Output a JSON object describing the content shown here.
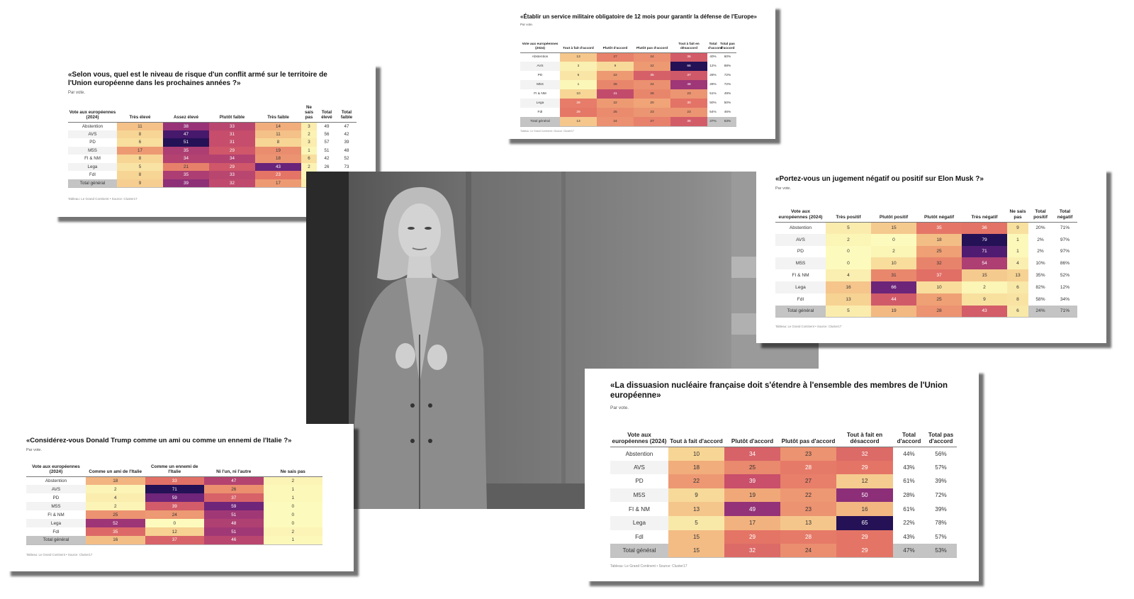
{
  "colors": {
    "heat_low": "#fcfbbd",
    "heat_mid": "#e47466",
    "heat_high": "#241156",
    "total_row": "#c4c4c4"
  },
  "chart_data": [
    {
      "type": "heatmap",
      "title": "«Selon vous, quel est le niveau de risque d'un conflit armé sur le territoire de l'Union européenne dans les prochaines années ?»",
      "subtitle": "Par vote.",
      "source": "Tableau: Le Grand Continent • Source: Cluster17",
      "row_header": "Vote aux européennes (2024)",
      "heat_headers": [
        "Très élevé",
        "Assez élevé",
        "Plutôt faible",
        "Très faible",
        "Ne sais pas"
      ],
      "total_headers": [
        "Total élevé",
        "Total faible"
      ],
      "rows": [
        {
          "label": "Abstention",
          "values": [
            11,
            38,
            33,
            14,
            3
          ],
          "totals": [
            "49",
            "47"
          ]
        },
        {
          "label": "AVS",
          "values": [
            8,
            47,
            31,
            11,
            2
          ],
          "totals": [
            "56",
            "42"
          ]
        },
        {
          "label": "PD",
          "values": [
            6,
            51,
            31,
            8,
            3
          ],
          "totals": [
            "57",
            "39"
          ]
        },
        {
          "label": "M5S",
          "values": [
            17,
            35,
            29,
            19,
            1
          ],
          "totals": [
            "51",
            "48"
          ]
        },
        {
          "label": "FI & NM",
          "values": [
            8,
            34,
            34,
            18,
            6
          ],
          "totals": [
            "42",
            "52"
          ]
        },
        {
          "label": "Lega",
          "values": [
            5,
            21,
            29,
            43,
            2
          ],
          "totals": [
            "26",
            "73"
          ]
        },
        {
          "label": "FdI",
          "values": [
            8,
            35,
            33,
            23,
            1
          ],
          "totals": [
            null,
            null
          ]
        },
        {
          "label": "Total général",
          "values": [
            9,
            39,
            32,
            17,
            3
          ],
          "totals": [
            null,
            null
          ]
        }
      ]
    },
    {
      "type": "heatmap",
      "title": "«Établir un service militaire obligatoire de 12 mois pour garantir la défense de l'Europe»",
      "subtitle": "Par vote.",
      "source": "Tableau: Le Grand Continent • Source: Cluster17",
      "row_header": "Vote aux européennes (2024)",
      "heat_headers": [
        "Tout à fait d'accord",
        "Plutôt d'accord",
        "Plutôt pas d'accord",
        "Tout à fait en désaccord"
      ],
      "total_headers": [
        "Total d'accord",
        "Total pas d'accord"
      ],
      "rows": [
        {
          "label": "Abstention",
          "values": [
            13,
            27,
            24,
            36
          ],
          "totals": [
            "40%",
            "60%"
          ]
        },
        {
          "label": "AVS",
          "values": [
            3,
            9,
            22,
            66
          ],
          "totals": [
            "12%",
            "88%"
          ]
        },
        {
          "label": "PD",
          "values": [
            6,
            22,
            35,
            37
          ],
          "totals": [
            "28%",
            "72%"
          ]
        },
        {
          "label": "M5S",
          "values": [
            1,
            26,
            24,
            48
          ],
          "totals": [
            "28%",
            "72%"
          ]
        },
        {
          "label": "FI & NM",
          "values": [
            10,
            41,
            26,
            23
          ],
          "totals": [
            "51%",
            "49%"
          ]
        },
        {
          "label": "Lega",
          "values": [
            28,
            22,
            20,
            30
          ],
          "totals": [
            "50%",
            "50%"
          ]
        },
        {
          "label": "FdI",
          "values": [
            29,
            25,
            23,
            23
          ],
          "totals": [
            "54%",
            "46%"
          ]
        },
        {
          "label": "Total général",
          "values": [
            13,
            24,
            27,
            36
          ],
          "totals": [
            "37%",
            "63%"
          ]
        }
      ]
    },
    {
      "type": "heatmap",
      "title": "«Portez-vous un jugement négatif ou positif sur Elon Musk ?»",
      "subtitle": "Par vote.",
      "source": "Tableau: Le Grand Continent • Source: Cluster17",
      "row_header": "Vote aux européennes (2024)",
      "heat_headers": [
        "Très positif",
        "Plutôt positif",
        "Plutôt négatif",
        "Très négatif",
        "Ne sais pas"
      ],
      "total_headers": [
        "Total positif",
        "Total négatif"
      ],
      "rows": [
        {
          "label": "Abstention",
          "values": [
            5,
            15,
            35,
            36,
            9
          ],
          "totals": [
            "20%",
            "71%"
          ]
        },
        {
          "label": "AVS",
          "values": [
            2,
            0,
            18,
            79,
            1
          ],
          "totals": [
            "2%",
            "97%"
          ]
        },
        {
          "label": "PD",
          "values": [
            0,
            2,
            25,
            71,
            1
          ],
          "totals": [
            "2%",
            "97%"
          ]
        },
        {
          "label": "M5S",
          "values": [
            0,
            10,
            32,
            54,
            4
          ],
          "totals": [
            "10%",
            "86%"
          ]
        },
        {
          "label": "FI & NM",
          "values": [
            4,
            31,
            37,
            15,
            13
          ],
          "totals": [
            "35%",
            "52%"
          ]
        },
        {
          "label": "Lega",
          "values": [
            16,
            66,
            10,
            2,
            6
          ],
          "totals": [
            "82%",
            "12%"
          ]
        },
        {
          "label": "FdI",
          "values": [
            13,
            44,
            25,
            9,
            8
          ],
          "totals": [
            "58%",
            "34%"
          ]
        },
        {
          "label": "Total général",
          "values": [
            5,
            19,
            28,
            43,
            6
          ],
          "totals": [
            "24%",
            "71%"
          ]
        }
      ]
    },
    {
      "type": "heatmap",
      "title": "«Considérez-vous Donald Trump comme un ami ou comme un ennemi de l'Italie ?»",
      "subtitle": "Par vote.",
      "source": "Tableau: Le Grand Continent • Source: Cluster17",
      "row_header": "Vote aux européennes (2024)",
      "heat_headers": [
        "Comme un ami de l'Italie",
        "Comme un ennemi de l'Italie",
        "Ni l'un, ni l'autre",
        "Ne sais pas"
      ],
      "total_headers": [],
      "rows": [
        {
          "label": "Abstention",
          "values": [
            18,
            33,
            47,
            2
          ],
          "totals": []
        },
        {
          "label": "AVS",
          "values": [
            2,
            71,
            26,
            1
          ],
          "totals": []
        },
        {
          "label": "PD",
          "values": [
            4,
            59,
            37,
            1
          ],
          "totals": []
        },
        {
          "label": "M5S",
          "values": [
            2,
            39,
            59,
            0
          ],
          "totals": []
        },
        {
          "label": "FI & NM",
          "values": [
            25,
            24,
            51,
            0
          ],
          "totals": []
        },
        {
          "label": "Lega",
          "values": [
            52,
            0,
            48,
            0
          ],
          "totals": []
        },
        {
          "label": "FdI",
          "values": [
            35,
            12,
            51,
            2
          ],
          "totals": []
        },
        {
          "label": "Total général",
          "values": [
            16,
            37,
            46,
            1
          ],
          "totals": []
        }
      ]
    },
    {
      "type": "heatmap",
      "title": "«La dissuasion nucléaire française doit s'étendre à l'ensemble des membres de l'Union européenne»",
      "subtitle": "Par vote.",
      "source": "Tableau: Le Grand Continent • Source: Cluster17",
      "row_header": "Vote aux européennes (2024)",
      "heat_headers": [
        "Tout à fait d'accord",
        "Plutôt d'accord",
        "Plutôt pas d'accord",
        "Tout à fait en désaccord"
      ],
      "total_headers": [
        "Total d'accord",
        "Total pas d'accord"
      ],
      "rows": [
        {
          "label": "Abstention",
          "values": [
            10,
            34,
            23,
            32
          ],
          "totals": [
            "44%",
            "56%"
          ]
        },
        {
          "label": "AVS",
          "values": [
            18,
            25,
            28,
            29
          ],
          "totals": [
            "43%",
            "57%"
          ]
        },
        {
          "label": "PD",
          "values": [
            22,
            39,
            27,
            12
          ],
          "totals": [
            "61%",
            "39%"
          ]
        },
        {
          "label": "M5S",
          "values": [
            9,
            19,
            22,
            50
          ],
          "totals": [
            "28%",
            "72%"
          ]
        },
        {
          "label": "FI & NM",
          "values": [
            13,
            49,
            23,
            16
          ],
          "totals": [
            "61%",
            "39%"
          ]
        },
        {
          "label": "Lega",
          "values": [
            5,
            17,
            13,
            65
          ],
          "totals": [
            "22%",
            "78%"
          ]
        },
        {
          "label": "FdI",
          "values": [
            15,
            29,
            28,
            29
          ],
          "totals": [
            "43%",
            "57%"
          ]
        },
        {
          "label": "Total général",
          "values": [
            15,
            32,
            24,
            29
          ],
          "totals": [
            "47%",
            "53%"
          ]
        }
      ]
    }
  ]
}
